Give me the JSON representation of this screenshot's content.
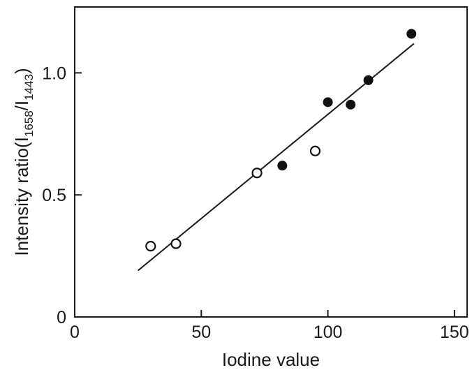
{
  "chart_data": {
    "type": "scatter",
    "xlabel": "Iodine value",
    "ylabel": {
      "prefix": "Intensity ratio(I",
      "sub1": "1658",
      "middle": "/I",
      "sub2": "1443",
      "suffix": ")"
    },
    "xlim": [
      0,
      155
    ],
    "ylim": [
      0,
      1.27
    ],
    "x_ticks": [
      0,
      50,
      100,
      150
    ],
    "y_ticks": [
      0,
      0.5,
      1.0
    ],
    "x_tick_labels": [
      "0",
      "50",
      "100",
      "150"
    ],
    "y_tick_labels": [
      "0",
      "0.5",
      "1.0"
    ],
    "series": [
      {
        "marker": "open-circle",
        "points": [
          [
            30,
            0.29
          ],
          [
            40,
            0.3
          ],
          [
            72,
            0.59
          ],
          [
            95,
            0.68
          ]
        ]
      },
      {
        "marker": "filled-circle",
        "points": [
          [
            82,
            0.62
          ],
          [
            100,
            0.88
          ],
          [
            109,
            0.87
          ],
          [
            116,
            0.97
          ],
          [
            133,
            1.16
          ]
        ]
      }
    ],
    "fit_line": {
      "x1": 25,
      "y1": 0.19,
      "x2": 134,
      "y2": 1.12
    },
    "grid": false,
    "legend": "none"
  }
}
